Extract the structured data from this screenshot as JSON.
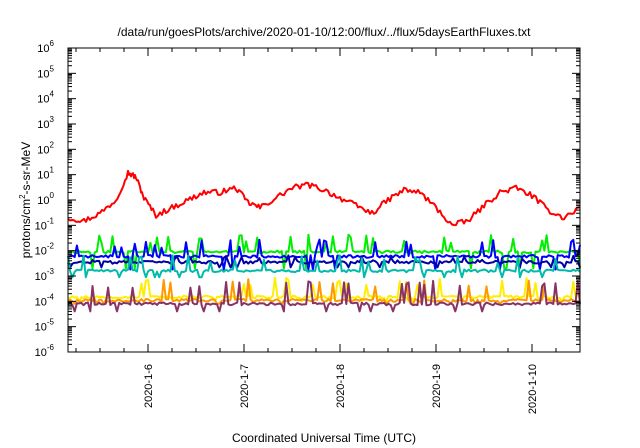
{
  "chart_data": {
    "type": "line",
    "title": "/data/run/goesPlots/archive/2020-01-10/12:00/flux/../flux/5daysEarthFluxes.txt",
    "xlabel": "Coordinated Universal Time (UTC)",
    "ylabel": {
      "prefix": "protons/cm",
      "superscript": "2",
      "suffix": "-s-sr-MeV"
    },
    "yscale": "log",
    "ylim": [
      1e-06,
      1000000.0
    ],
    "xlim": [
      "2020-01-05 04:00",
      "2020-01-10 12:00"
    ],
    "grid": false,
    "legend": "none",
    "y_ticks": [
      {
        "value": 1e-06,
        "base": "10",
        "exp": "-6"
      },
      {
        "value": 1e-05,
        "base": "10",
        "exp": "-5"
      },
      {
        "value": 0.0001,
        "base": "10",
        "exp": "-4"
      },
      {
        "value": 0.001,
        "base": "10",
        "exp": "-3"
      },
      {
        "value": 0.01,
        "base": "10",
        "exp": "-2"
      },
      {
        "value": 0.1,
        "base": "10",
        "exp": "-1"
      },
      {
        "value": 1.0,
        "base": "10",
        "exp": "0"
      },
      {
        "value": 10.0,
        "base": "10",
        "exp": "1"
      },
      {
        "value": 100.0,
        "base": "10",
        "exp": "2"
      },
      {
        "value": 1000.0,
        "base": "10",
        "exp": "3"
      },
      {
        "value": 10000.0,
        "base": "10",
        "exp": "4"
      },
      {
        "value": 100000.0,
        "base": "10",
        "exp": "5"
      },
      {
        "value": 1000000.0,
        "base": "10",
        "exp": "6"
      }
    ],
    "x_ticks": [
      {
        "value": "2020-01-06 00:00",
        "label": "2020-1-6"
      },
      {
        "value": "2020-01-07 00:00",
        "label": "2020-1-7"
      },
      {
        "value": "2020-01-08 00:00",
        "label": "2020-1-8"
      },
      {
        "value": "2020-01-09 00:00",
        "label": "2020-1-9"
      },
      {
        "value": "2020-01-10 00:00",
        "label": "2020-1-10"
      }
    ],
    "series": [
      {
        "color": "#ff0000",
        "mode": "smooth",
        "points": [
          [
            "2020-01-05 04:00",
            0.2
          ],
          [
            "2020-01-05 08:00",
            0.15
          ],
          [
            "2020-01-05 12:00",
            0.3
          ],
          [
            "2020-01-05 16:00",
            1.0
          ],
          [
            "2020-01-05 19:00",
            12
          ],
          [
            "2020-01-05 21:00",
            8
          ],
          [
            "2020-01-05 23:00",
            1.2
          ],
          [
            "2020-01-06 02:00",
            0.25
          ],
          [
            "2020-01-06 06:00",
            0.5
          ],
          [
            "2020-01-06 10:00",
            1.0
          ],
          [
            "2020-01-06 14:00",
            2.0
          ],
          [
            "2020-01-06 18:00",
            2.0
          ],
          [
            "2020-01-06 22:00",
            3.0
          ],
          [
            "2020-01-07 01:00",
            0.8
          ],
          [
            "2020-01-07 04:00",
            0.5
          ],
          [
            "2020-01-07 08:00",
            1.2
          ],
          [
            "2020-01-07 12:00",
            3.0
          ],
          [
            "2020-01-07 16:00",
            4.0
          ],
          [
            "2020-01-07 20:00",
            2.5
          ],
          [
            "2020-01-08 00:00",
            1.2
          ],
          [
            "2020-01-08 04:00",
            0.6
          ],
          [
            "2020-01-08 08:00",
            0.3
          ],
          [
            "2020-01-08 12:00",
            1.0
          ],
          [
            "2020-01-08 16:00",
            2.5
          ],
          [
            "2020-01-08 20:00",
            2.0
          ],
          [
            "2020-01-09 00:00",
            0.5
          ],
          [
            "2020-01-09 04:00",
            0.1
          ],
          [
            "2020-01-09 08:00",
            0.15
          ],
          [
            "2020-01-09 12:00",
            0.6
          ],
          [
            "2020-01-09 16:00",
            2.0
          ],
          [
            "2020-01-09 20:00",
            3.0
          ],
          [
            "2020-01-10 00:00",
            1.5
          ],
          [
            "2020-01-10 04:00",
            0.4
          ],
          [
            "2020-01-10 08:00",
            0.2
          ],
          [
            "2020-01-10 12:00",
            0.5
          ]
        ]
      },
      {
        "color": "#00ee00",
        "mode": "spiky",
        "base": 0.009,
        "spike": 0.04,
        "low": 0.002,
        "seed": 11
      },
      {
        "color": "#0000ff",
        "mode": "spiky",
        "base": 0.006,
        "spike": 0.025,
        "low": 0.0018,
        "seed": 23
      },
      {
        "color": "#0000aa",
        "mode": "spiky",
        "base": 0.0035,
        "spike": 0.006,
        "low": 0.0022,
        "seed": 37
      },
      {
        "color": "#00bbaa",
        "mode": "spiky",
        "base": 0.0016,
        "spike": 0.006,
        "low": 0.0009,
        "seed": 41
      },
      {
        "color": "#ffee00",
        "mode": "spiky",
        "base": 0.00015,
        "spike": 0.0008,
        "low": 0.0001,
        "seed": 53
      },
      {
        "color": "#ff9900",
        "mode": "spiky",
        "base": 0.00011,
        "spike": 0.0007,
        "low": 8e-05,
        "seed": 67
      },
      {
        "color": "#883366",
        "mode": "spiky",
        "base": 8e-05,
        "spike": 0.0006,
        "low": 4e-05,
        "seed": 79
      }
    ]
  }
}
